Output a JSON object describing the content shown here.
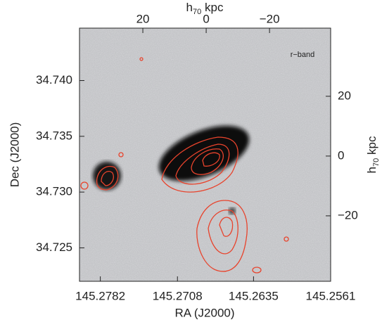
{
  "chart_data": {
    "type": "image",
    "xlabel": "RA (J2000)",
    "ylabel": "Dec (J2000)",
    "x2label": {
      "main": "h",
      "sub": "70",
      "rest": " kpc"
    },
    "y2label": {
      "main": "h",
      "sub": "70",
      "rest": " kpc"
    },
    "annotation": "r−band",
    "xlim": [
      145.2802,
      145.2561
    ],
    "xticks": [
      145.2782,
      145.2708,
      145.2635,
      145.2561
    ],
    "ylim": [
      34.722,
      34.7447
    ],
    "yticks": [
      {
        "value": 34.725,
        "label": "34.725"
      },
      {
        "value": 34.73,
        "label": "34.730"
      },
      {
        "value": 34.735,
        "label": "34.735"
      },
      {
        "value": 34.74,
        "label": "34.740"
      }
    ],
    "x2lim": [
      40,
      -39.3
    ],
    "x2ticks": [
      20,
      0,
      {
        "value": -20,
        "label": "−20"
      }
    ],
    "y2lim": [
      -41.9,
      42.8
    ],
    "y2ticks": [
      {
        "value": -20,
        "label": "−20"
      },
      0,
      20
    ],
    "contour_color": "#e8432c"
  }
}
